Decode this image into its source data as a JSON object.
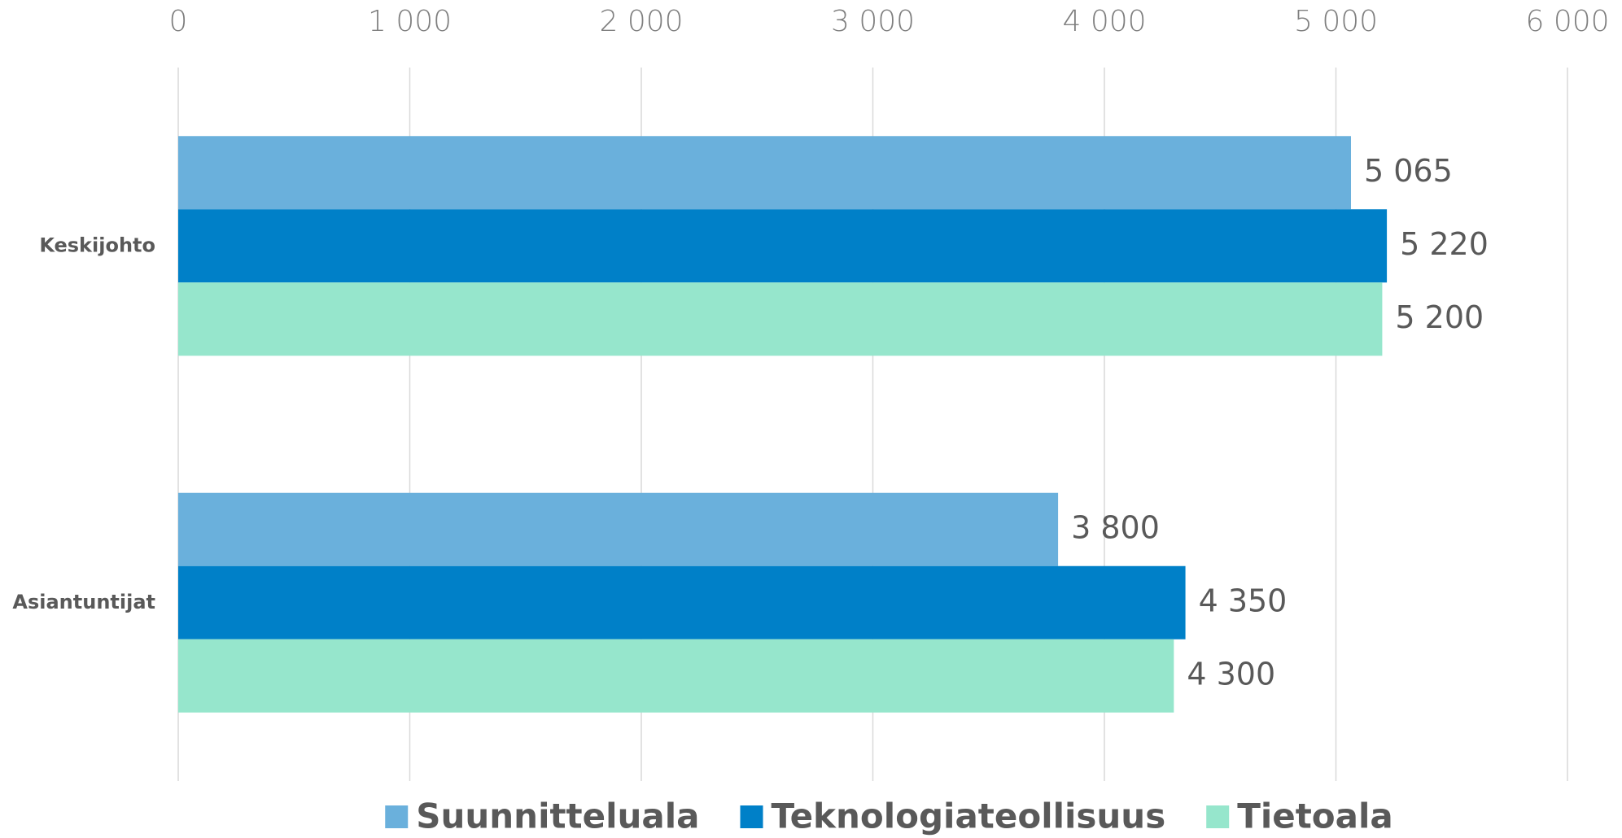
{
  "chart_data": {
    "type": "bar",
    "orientation": "horizontal",
    "categories": [
      "Keskijohto",
      "Asiantuntijat"
    ],
    "series": [
      {
        "name": "Suunnitteluala",
        "color": "#6ab0dc",
        "values": [
          5065,
          3800
        ],
        "value_labels": [
          "5 065",
          "3 800"
        ]
      },
      {
        "name": "Teknologiateollisuus",
        "color": "#0080c8",
        "values": [
          5220,
          4350
        ],
        "value_labels": [
          "5 220",
          "4 350"
        ]
      },
      {
        "name": "Tietoala",
        "color": "#96e6cc",
        "values": [
          5200,
          4300
        ],
        "value_labels": [
          "5 200",
          "4 300"
        ]
      }
    ],
    "xlim": [
      0,
      6000
    ],
    "xticks": [
      0,
      {
        "value": 1000,
        "label": "1 000"
      },
      {
        "value": 2000,
        "label": "2 000"
      },
      {
        "value": 3000,
        "label": "3 000"
      },
      {
        "value": 4000,
        "label": "4 000"
      },
      {
        "value": 5000,
        "label": "5 000"
      },
      {
        "value": 6000,
        "label": "6 000"
      }
    ],
    "grid": true,
    "legend": "bottom"
  }
}
